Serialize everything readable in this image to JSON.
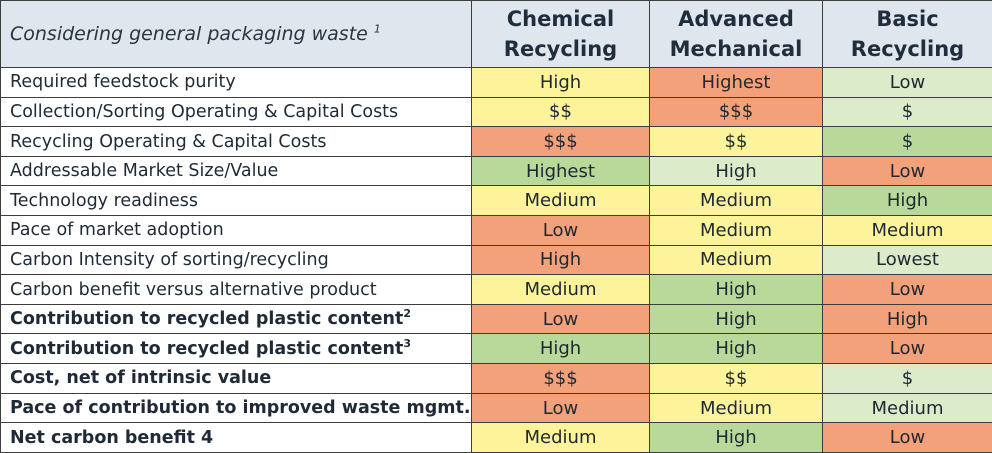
{
  "header": {
    "corner_text": "Considering general packaging waste",
    "corner_sup": "1",
    "columns": [
      {
        "line1": "Chemical",
        "line2": "Recycling"
      },
      {
        "line1": "Advanced",
        "line2": "Mechanical"
      },
      {
        "line1": "Basic",
        "line2": "Recycling"
      }
    ]
  },
  "colors": {
    "green": "#b9d99a",
    "light_green": "#dcebc9",
    "yellow": "#fcf39a",
    "orange": "#f3a17a"
  },
  "rows": [
    {
      "label": "Required feedstock purity",
      "sup": "",
      "bold": false,
      "cells": [
        {
          "text": "High",
          "color": "yellow"
        },
        {
          "text": "Highest",
          "color": "orange"
        },
        {
          "text": "Low",
          "color": "light_green"
        }
      ]
    },
    {
      "label": "Collection/Sorting Operating & Capital Costs",
      "sup": "",
      "bold": false,
      "cells": [
        {
          "text": "$$",
          "color": "yellow"
        },
        {
          "text": "$$$",
          "color": "orange"
        },
        {
          "text": "$",
          "color": "light_green"
        }
      ]
    },
    {
      "label": "Recycling Operating & Capital Costs",
      "sup": "",
      "bold": false,
      "cells": [
        {
          "text": "$$$",
          "color": "orange"
        },
        {
          "text": "$$",
          "color": "yellow"
        },
        {
          "text": "$",
          "color": "green"
        }
      ]
    },
    {
      "label": "Addressable Market Size/Value",
      "sup": "",
      "bold": false,
      "cells": [
        {
          "text": "Highest",
          "color": "green"
        },
        {
          "text": "High",
          "color": "light_green"
        },
        {
          "text": "Low",
          "color": "orange"
        }
      ]
    },
    {
      "label": "Technology readiness",
      "sup": "",
      "bold": false,
      "cells": [
        {
          "text": "Medium",
          "color": "yellow"
        },
        {
          "text": "Medium",
          "color": "yellow"
        },
        {
          "text": "High",
          "color": "green"
        }
      ]
    },
    {
      "label": "Pace of market adoption",
      "sup": "",
      "bold": false,
      "cells": [
        {
          "text": "Low",
          "color": "orange"
        },
        {
          "text": "Medium",
          "color": "yellow"
        },
        {
          "text": "Medium",
          "color": "yellow"
        }
      ]
    },
    {
      "label": "Carbon Intensity of sorting/recycling",
      "sup": "",
      "bold": false,
      "cells": [
        {
          "text": "High",
          "color": "orange"
        },
        {
          "text": "Medium",
          "color": "yellow"
        },
        {
          "text": "Lowest",
          "color": "light_green"
        }
      ]
    },
    {
      "label": "Carbon benefit versus alternative product",
      "sup": "",
      "bold": false,
      "cells": [
        {
          "text": "Medium",
          "color": "yellow"
        },
        {
          "text": "High",
          "color": "green"
        },
        {
          "text": "Low",
          "color": "orange"
        }
      ]
    },
    {
      "label": "Contribution to recycled plastic content",
      "sup": "2",
      "bold": true,
      "cells": [
        {
          "text": "Low",
          "color": "orange"
        },
        {
          "text": "High",
          "color": "green"
        },
        {
          "text": "High",
          "color": "orange"
        }
      ]
    },
    {
      "label": "Contribution to recycled plastic content",
      "sup": "3",
      "bold": true,
      "cells": [
        {
          "text": "High",
          "color": "green"
        },
        {
          "text": "High",
          "color": "green"
        },
        {
          "text": "Low",
          "color": "orange"
        }
      ]
    },
    {
      "label": "Cost, net of intrinsic value",
      "sup": "",
      "bold": true,
      "cells": [
        {
          "text": "$$$",
          "color": "orange"
        },
        {
          "text": "$$",
          "color": "yellow"
        },
        {
          "text": "$",
          "color": "light_green"
        }
      ]
    },
    {
      "label": "Pace of contribution to improved waste mgmt.",
      "sup": "",
      "bold": true,
      "cells": [
        {
          "text": "Low",
          "color": "orange"
        },
        {
          "text": "Medium",
          "color": "yellow"
        },
        {
          "text": "Medium",
          "color": "light_green"
        }
      ]
    },
    {
      "label": "Net carbon benefit 4",
      "sup": "",
      "bold": true,
      "cells": [
        {
          "text": "Medium",
          "color": "yellow"
        },
        {
          "text": "High",
          "color": "green"
        },
        {
          "text": "Low",
          "color": "orange"
        }
      ]
    }
  ]
}
